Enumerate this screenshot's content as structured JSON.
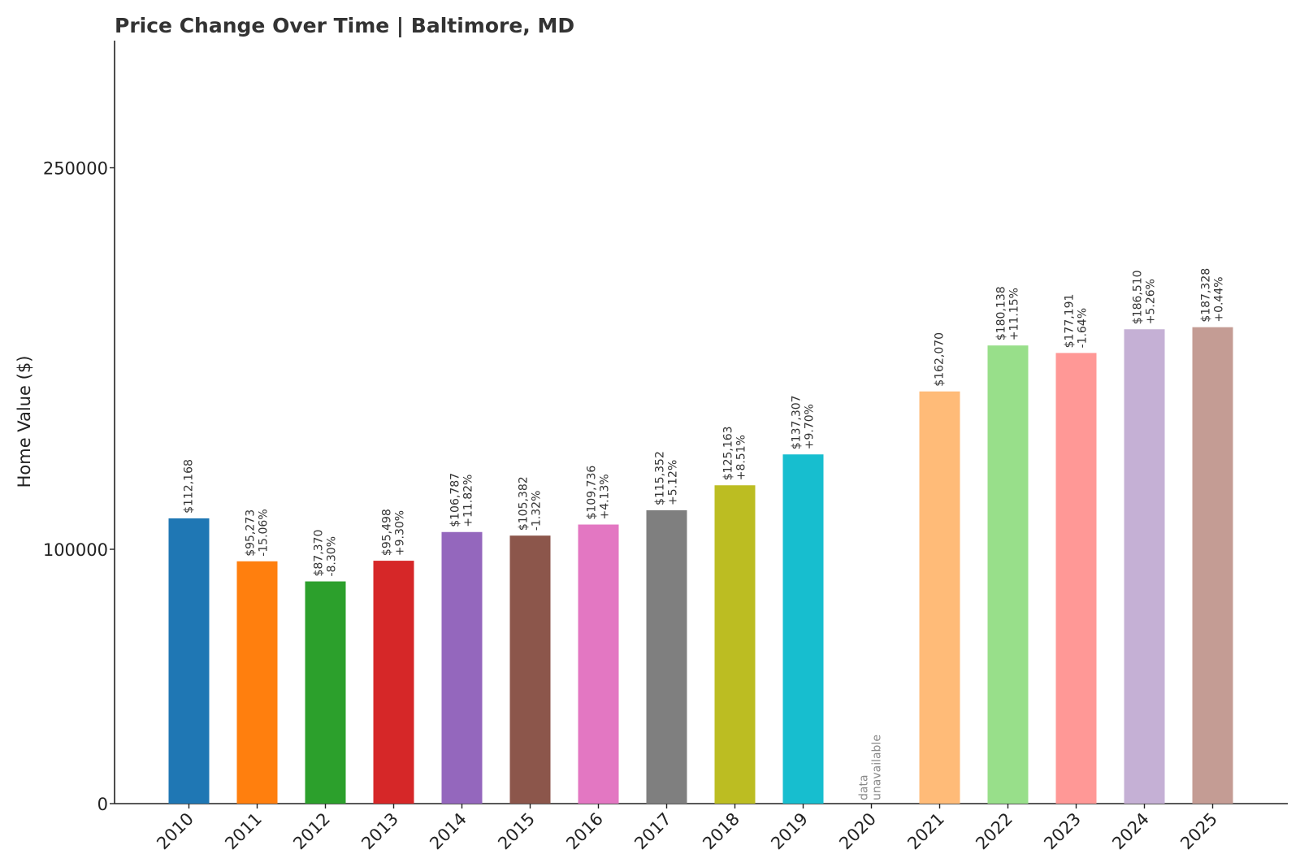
{
  "chart_data": {
    "type": "bar",
    "title": "Price Change Over Time | Baltimore, MD",
    "xlabel": "",
    "ylabel": "Home Value ($)",
    "ylim": [
      0,
      300000
    ],
    "yticks": [
      0,
      100000,
      250000
    ],
    "ytick_labels": [
      "0",
      "100000",
      "250000"
    ],
    "categories": [
      "2010",
      "2011",
      "2012",
      "2013",
      "2014",
      "2015",
      "2016",
      "2017",
      "2018",
      "2019",
      "2020",
      "2021",
      "2022",
      "2023",
      "2024",
      "2025"
    ],
    "values": [
      112168,
      95273,
      87370,
      95498,
      106787,
      105382,
      109736,
      115352,
      125163,
      137307,
      null,
      162070,
      180138,
      177191,
      186510,
      187328
    ],
    "value_labels": [
      "$112,168",
      "$95,273",
      "$87,370",
      "$95,498",
      "$106,787",
      "$105,382",
      "$109,736",
      "$115,352",
      "$125,163",
      "$137,307",
      "",
      "$162,070",
      "$180,138",
      "$177,191",
      "$186,510",
      "$187,328"
    ],
    "change_labels": [
      "",
      "-15.06%",
      "-8.30%",
      "+9.30%",
      "+11.82%",
      "-1.32%",
      "+4.13%",
      "+5.12%",
      "+8.51%",
      "+9.70%",
      "",
      "",
      "+11.15%",
      "-1.64%",
      "+5.26%",
      "+0.44%"
    ],
    "missing_label": [
      "data",
      "unavailable"
    ],
    "colors": [
      "#1f77b4",
      "#ff7f0e",
      "#2ca02c",
      "#d62728",
      "#9467bd",
      "#8c564b",
      "#e377c2",
      "#7f7f7f",
      "#bcbd22",
      "#17becf",
      "#aec7e8",
      "#ffbb78",
      "#98df8a",
      "#ff9896",
      "#c5b0d5",
      "#c49c94"
    ],
    "grid": false,
    "legend": "none"
  }
}
